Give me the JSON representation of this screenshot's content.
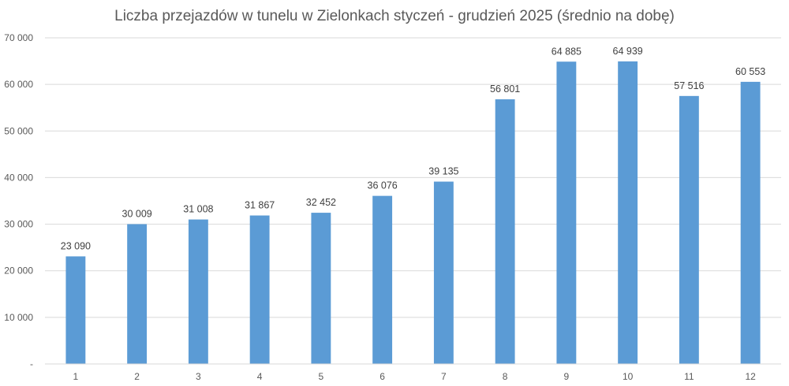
{
  "chart_data": {
    "type": "bar",
    "title": "Liczba przejazdów w tunelu w Zielonkach styczeń - grudzień 2025 (średnio na dobę)",
    "xlabel": "",
    "ylabel": "",
    "categories": [
      "1",
      "2",
      "3",
      "4",
      "5",
      "6",
      "7",
      "8",
      "9",
      "10",
      "11",
      "12"
    ],
    "values": [
      23090,
      30009,
      31008,
      31867,
      32452,
      36076,
      39135,
      56801,
      64885,
      64939,
      57516,
      60553
    ],
    "value_labels": [
      "23 090",
      "30 009",
      "31 008",
      "31 867",
      "32 452",
      "36 076",
      "39 135",
      "56 801",
      "64 885",
      "64 939",
      "57 516",
      "60 553"
    ],
    "ylim": [
      0,
      70000
    ],
    "y_ticks": [
      0,
      10000,
      20000,
      30000,
      40000,
      50000,
      60000,
      70000
    ],
    "y_tick_labels": [
      "-",
      "10 000",
      "20 000",
      "30 000",
      "40 000",
      "50 000",
      "60 000",
      "70 000"
    ],
    "grid": true,
    "legend": "none",
    "bar_color": "#5b9bd5"
  }
}
